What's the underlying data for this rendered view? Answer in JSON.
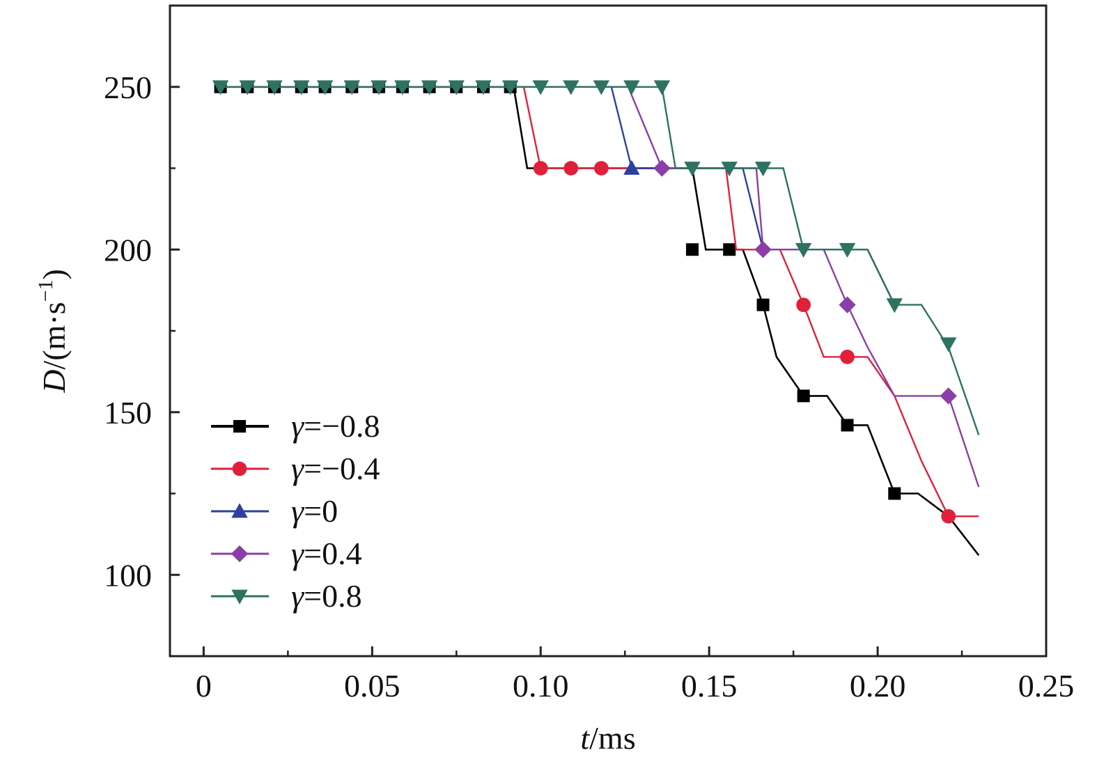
{
  "chart_data": {
    "type": "line",
    "title": "",
    "xlabel": {
      "var": "t",
      "unit": "/ms"
    },
    "ylabel": {
      "var": "D",
      "unit": "/(m·s",
      "sup": "−1",
      "close": ")"
    },
    "xlim": [
      -0.01,
      0.25
    ],
    "ylim": [
      75,
      275
    ],
    "xticks": [
      0,
      0.05,
      0.1,
      0.15,
      0.2,
      0.25
    ],
    "xtick_labels": [
      "0",
      "0.05",
      "0.10",
      "0.15",
      "0.20",
      "0.25"
    ],
    "yticks": [
      100,
      150,
      200,
      250
    ],
    "ytick_labels": [
      "100",
      "150",
      "200",
      "250"
    ],
    "grid": false,
    "legend_position": "bottom-left",
    "series": [
      {
        "name": "γ=−0.8",
        "gamma_var": "γ",
        "gamma_val": "=−0.8",
        "color": "#000000",
        "marker": "square",
        "line": [
          [
            0.005,
            250
          ],
          [
            0.092,
            250
          ],
          [
            0.096,
            225
          ],
          [
            0.145,
            225
          ],
          [
            0.149,
            200
          ],
          [
            0.156,
            200
          ],
          [
            0.16,
            200
          ],
          [
            0.166,
            183
          ],
          [
            0.17,
            167
          ],
          [
            0.178,
            155
          ],
          [
            0.185,
            155
          ],
          [
            0.191,
            146
          ],
          [
            0.197,
            146
          ],
          [
            0.205,
            125
          ],
          [
            0.212,
            125
          ],
          [
            0.221,
            118
          ],
          [
            0.23,
            106
          ]
        ],
        "markers": [
          [
            0.005,
            250
          ],
          [
            0.013,
            250
          ],
          [
            0.021,
            250
          ],
          [
            0.029,
            250
          ],
          [
            0.036,
            250
          ],
          [
            0.044,
            250
          ],
          [
            0.052,
            250
          ],
          [
            0.059,
            250
          ],
          [
            0.067,
            250
          ],
          [
            0.075,
            250
          ],
          [
            0.083,
            250
          ],
          [
            0.091,
            250
          ],
          [
            0.145,
            200
          ],
          [
            0.156,
            200
          ],
          [
            0.166,
            183
          ],
          [
            0.178,
            155
          ],
          [
            0.191,
            146
          ],
          [
            0.205,
            125
          ]
        ]
      },
      {
        "name": "γ=−0.4",
        "gamma_var": "γ",
        "gamma_val": "=−0.4",
        "color": "#e0203a",
        "marker": "circle",
        "line": [
          [
            0.005,
            250
          ],
          [
            0.095,
            250
          ],
          [
            0.1,
            225
          ],
          [
            0.155,
            225
          ],
          [
            0.158,
            200
          ],
          [
            0.171,
            200
          ],
          [
            0.178,
            183
          ],
          [
            0.184,
            167
          ],
          [
            0.197,
            167
          ],
          [
            0.205,
            155
          ],
          [
            0.213,
            135
          ],
          [
            0.221,
            118
          ],
          [
            0.23,
            118
          ]
        ],
        "markers": [
          [
            0.1,
            225
          ],
          [
            0.109,
            225
          ],
          [
            0.118,
            225
          ],
          [
            0.178,
            183
          ],
          [
            0.191,
            167
          ],
          [
            0.221,
            118
          ]
        ]
      },
      {
        "name": "γ=0",
        "gamma_var": "γ",
        "gamma_val": "=0",
        "color": "#2e3f9e",
        "marker": "triangle-up",
        "line": [
          [
            0.005,
            250
          ],
          [
            0.121,
            250
          ],
          [
            0.127,
            225
          ],
          [
            0.16,
            225
          ],
          [
            0.166,
            200
          ],
          [
            0.197,
            200
          ],
          [
            0.205,
            183
          ]
        ],
        "markers": [
          [
            0.127,
            225
          ]
        ]
      },
      {
        "name": "γ=0.4",
        "gamma_var": "γ",
        "gamma_val": "=0.4",
        "color": "#8a3fa8",
        "marker": "diamond",
        "line": [
          [
            0.005,
            250
          ],
          [
            0.126,
            250
          ],
          [
            0.136,
            225
          ],
          [
            0.164,
            225
          ],
          [
            0.166,
            200
          ],
          [
            0.184,
            200
          ],
          [
            0.191,
            183
          ],
          [
            0.197,
            170
          ],
          [
            0.205,
            155
          ],
          [
            0.221,
            155
          ],
          [
            0.23,
            127
          ]
        ],
        "markers": [
          [
            0.136,
            225
          ],
          [
            0.166,
            200
          ],
          [
            0.191,
            183
          ],
          [
            0.221,
            155
          ]
        ]
      },
      {
        "name": "γ=0.8",
        "gamma_var": "γ",
        "gamma_val": "=0.8",
        "color": "#2e7260",
        "marker": "triangle-down",
        "line": [
          [
            0.005,
            250
          ],
          [
            0.136,
            250
          ],
          [
            0.14,
            225
          ],
          [
            0.172,
            225
          ],
          [
            0.178,
            200
          ],
          [
            0.197,
            200
          ],
          [
            0.205,
            183
          ],
          [
            0.213,
            183
          ],
          [
            0.221,
            170
          ],
          [
            0.23,
            143
          ]
        ],
        "markers": [
          [
            0.005,
            250
          ],
          [
            0.013,
            250
          ],
          [
            0.021,
            250
          ],
          [
            0.029,
            250
          ],
          [
            0.036,
            250
          ],
          [
            0.044,
            250
          ],
          [
            0.052,
            250
          ],
          [
            0.059,
            250
          ],
          [
            0.067,
            250
          ],
          [
            0.075,
            250
          ],
          [
            0.083,
            250
          ],
          [
            0.091,
            250
          ],
          [
            0.1,
            250
          ],
          [
            0.109,
            250
          ],
          [
            0.118,
            250
          ],
          [
            0.127,
            250
          ],
          [
            0.136,
            250
          ],
          [
            0.145,
            225
          ],
          [
            0.156,
            225
          ],
          [
            0.166,
            225
          ],
          [
            0.178,
            200
          ],
          [
            0.191,
            200
          ],
          [
            0.205,
            183
          ],
          [
            0.221,
            171
          ]
        ]
      }
    ]
  }
}
